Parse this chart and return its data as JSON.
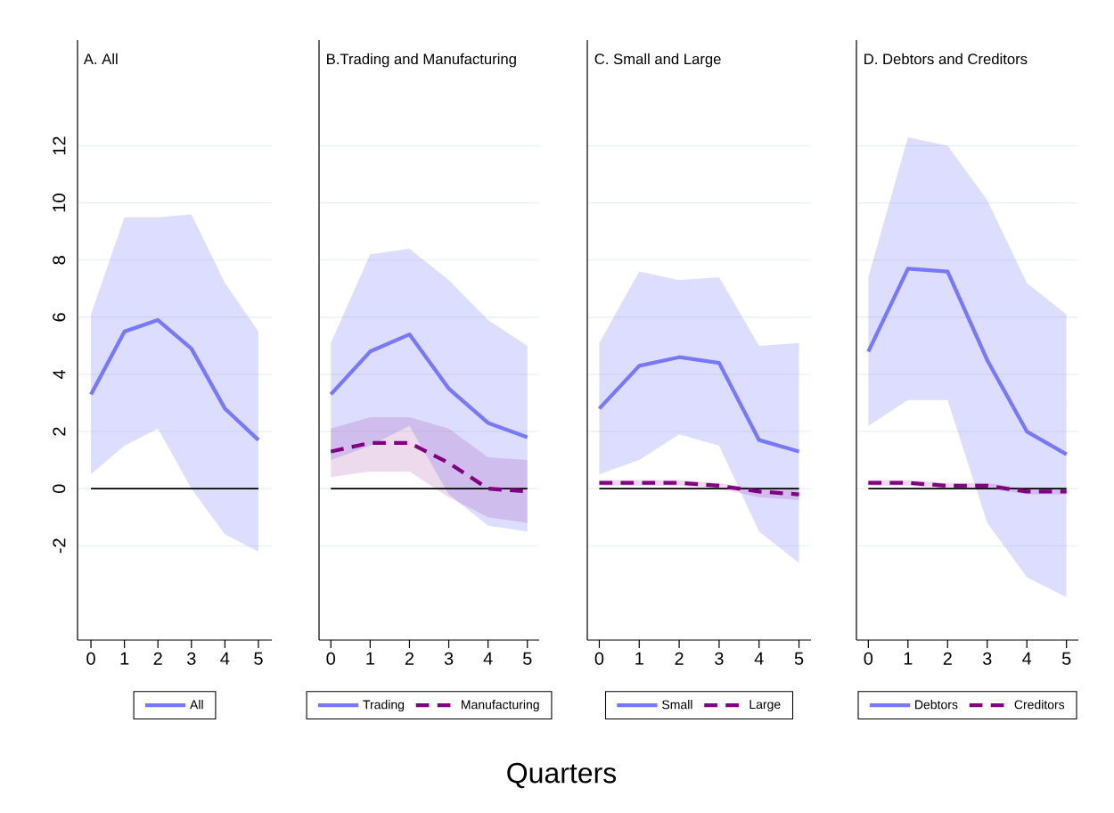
{
  "chart_data": [
    {
      "type": "line",
      "title": "A. All",
      "x": [
        0,
        1,
        2,
        3,
        4,
        5
      ],
      "xlim": [
        -0.4,
        5.4
      ],
      "xticks": [
        0,
        1,
        2,
        3,
        4,
        5
      ],
      "ylim": [
        -5.3,
        15.7
      ],
      "yticks": [
        -2,
        0,
        2,
        4,
        6,
        8,
        10,
        12
      ],
      "grid": "y",
      "legend": "bottom",
      "ref_lines": [
        {
          "axis": "y",
          "value": 0,
          "color": "#000000"
        }
      ],
      "series": [
        {
          "name": "All",
          "color": "#7878ff",
          "line_style": "solid",
          "values": [
            3.3,
            5.5,
            5.9,
            4.9,
            2.8,
            1.7
          ],
          "upper": [
            6.1,
            9.5,
            9.5,
            9.6,
            7.2,
            5.5
          ],
          "lower": [
            0.5,
            1.5,
            2.1,
            0.0,
            -1.6,
            -2.2
          ]
        }
      ]
    },
    {
      "type": "line",
      "title": "B.Trading and Manufacturing",
      "xlabel": "Quarters",
      "x": [
        0,
        1,
        2,
        3,
        4,
        5
      ],
      "xlim": [
        -0.3,
        5.3
      ],
      "xticks": [
        0,
        1,
        2,
        3,
        4,
        5
      ],
      "ylim": [
        -5.3,
        15.7
      ],
      "yticks": [
        -2,
        0,
        2,
        4,
        6,
        8,
        10,
        12
      ],
      "grid": "y",
      "legend": "bottom",
      "tick_labels": "x",
      "ref_lines": [
        {
          "axis": "y",
          "value": 0,
          "color": "#000000"
        }
      ],
      "series": [
        {
          "name": "Trading",
          "color": "#7878ff",
          "line_style": "solid",
          "values": [
            3.3,
            4.8,
            5.4,
            3.5,
            2.3,
            1.8
          ],
          "upper": [
            5.1,
            8.2,
            8.4,
            7.3,
            5.9,
            5.0
          ],
          "lower": [
            1.0,
            1.5,
            2.2,
            -0.2,
            -1.3,
            -1.5
          ]
        },
        {
          "name": "Manufacturing",
          "color": "#800080",
          "line_style": "dashed",
          "values": [
            1.3,
            1.6,
            1.6,
            0.9,
            0.0,
            -0.1
          ],
          "upper": [
            2.1,
            2.5,
            2.5,
            2.1,
            1.1,
            1.0
          ],
          "lower": [
            0.4,
            0.6,
            0.6,
            -0.3,
            -1.0,
            -1.2
          ]
        }
      ]
    },
    {
      "type": "line",
      "title": "C. Small and Large",
      "x": [
        0,
        1,
        2,
        3,
        4,
        5
      ],
      "xlim": [
        -0.3,
        5.3
      ],
      "xticks": [
        0,
        1,
        2,
        3,
        4,
        5
      ],
      "ylim": [
        -5.3,
        15.7
      ],
      "yticks": [
        -2,
        0,
        2,
        4,
        6,
        8,
        10,
        12
      ],
      "grid": "y",
      "legend": "bottom",
      "tick_labels": "x",
      "ref_lines": [
        {
          "axis": "y",
          "value": 0,
          "color": "#000000"
        }
      ],
      "series": [
        {
          "name": "Small",
          "color": "#7878ff",
          "line_style": "solid",
          "values": [
            2.8,
            4.3,
            4.6,
            4.4,
            1.7,
            1.3
          ],
          "upper": [
            5.1,
            7.6,
            7.3,
            7.4,
            5.0,
            5.1
          ],
          "lower": [
            0.5,
            1.0,
            1.9,
            1.5,
            -1.5,
            -2.6
          ]
        },
        {
          "name": "Large",
          "color": "#800080",
          "line_style": "dashed",
          "values": [
            0.2,
            0.2,
            0.2,
            0.1,
            -0.1,
            -0.2
          ],
          "upper": [
            0.3,
            0.3,
            0.3,
            0.2,
            0.0,
            0.0
          ],
          "lower": [
            0.1,
            0.1,
            0.1,
            0.0,
            -0.3,
            -0.4
          ]
        }
      ]
    },
    {
      "type": "line",
      "title": "D. Debtors and Creditors",
      "x": [
        0,
        1,
        2,
        3,
        4,
        5
      ],
      "xlim": [
        -0.3,
        5.3
      ],
      "xticks": [
        0,
        1,
        2,
        3,
        4,
        5
      ],
      "ylim": [
        -5.3,
        15.7
      ],
      "yticks": [
        -2,
        0,
        2,
        4,
        6,
        8,
        10,
        12
      ],
      "grid": "y",
      "legend": "bottom",
      "tick_labels": "x",
      "ref_lines": [
        {
          "axis": "y",
          "value": 0,
          "color": "#000000"
        }
      ],
      "series": [
        {
          "name": "Debtors",
          "color": "#7878ff",
          "line_style": "solid",
          "values": [
            4.8,
            7.7,
            7.6,
            4.5,
            2.0,
            1.2
          ],
          "upper": [
            7.4,
            12.3,
            12.0,
            10.1,
            7.2,
            6.1
          ],
          "lower": [
            2.2,
            3.1,
            3.1,
            -1.2,
            -3.1,
            -3.8
          ]
        },
        {
          "name": "Creditors",
          "color": "#800080",
          "line_style": "dashed",
          "values": [
            0.2,
            0.2,
            0.1,
            0.1,
            -0.1,
            -0.1
          ],
          "upper": [
            0.3,
            0.3,
            0.2,
            0.2,
            0.0,
            0.0
          ],
          "lower": [
            0.1,
            0.1,
            0.0,
            0.0,
            -0.2,
            -0.2
          ]
        }
      ]
    }
  ]
}
